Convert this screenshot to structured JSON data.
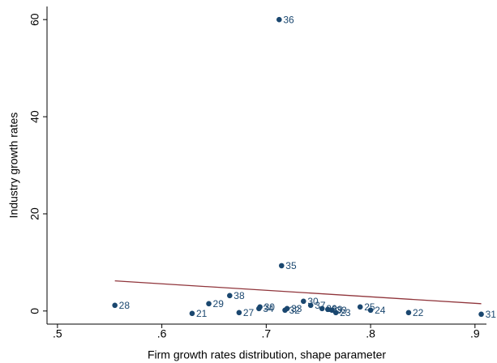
{
  "chart_data": {
    "type": "scatter",
    "x_label": "Firm growth rates distribution, shape parameter",
    "y_label": "Industry growth rates",
    "xlim": [
      0.49,
      0.911
    ],
    "ylim": [
      -2.7,
      62.7
    ],
    "xticks": [
      {
        "value": 0.5,
        "label": ".5"
      },
      {
        "value": 0.6,
        "label": ".6"
      },
      {
        "value": 0.7,
        "label": ".7"
      },
      {
        "value": 0.8,
        "label": ".8"
      },
      {
        "value": 0.9,
        "label": ".9"
      }
    ],
    "yticks": [
      0,
      20,
      40,
      60
    ],
    "series": [
      {
        "type": "scatter",
        "color": "#1a476f",
        "x": [
          0.7124,
          0.7147,
          0.665,
          0.555,
          0.645,
          0.629,
          0.674,
          0.693,
          0.694,
          0.7357,
          0.718,
          0.72,
          0.7426,
          0.7535,
          0.759,
          0.763,
          0.7667,
          0.79,
          0.8,
          0.8364,
          0.906
        ],
        "values": [
          60,
          9.33,
          3.17,
          1.17,
          1.5,
          -0.5,
          -0.33,
          0.5,
          0.83,
          2.0,
          0.17,
          0.5,
          1.17,
          0.5,
          0.33,
          0.17,
          -0.33,
          0.83,
          0.17,
          -0.33,
          -0.67
        ],
        "labels": [
          "36",
          "35",
          "38",
          "28",
          "29",
          "21",
          "27",
          "34",
          "30",
          "30",
          "32",
          "33",
          "37",
          "26",
          "39",
          "33",
          "23",
          "25",
          "24",
          "22",
          "31"
        ]
      },
      {
        "type": "line",
        "color": "#90353b",
        "x": [
          0.555,
          0.906
        ],
        "values": [
          6.2,
          1.5
        ]
      }
    ]
  }
}
